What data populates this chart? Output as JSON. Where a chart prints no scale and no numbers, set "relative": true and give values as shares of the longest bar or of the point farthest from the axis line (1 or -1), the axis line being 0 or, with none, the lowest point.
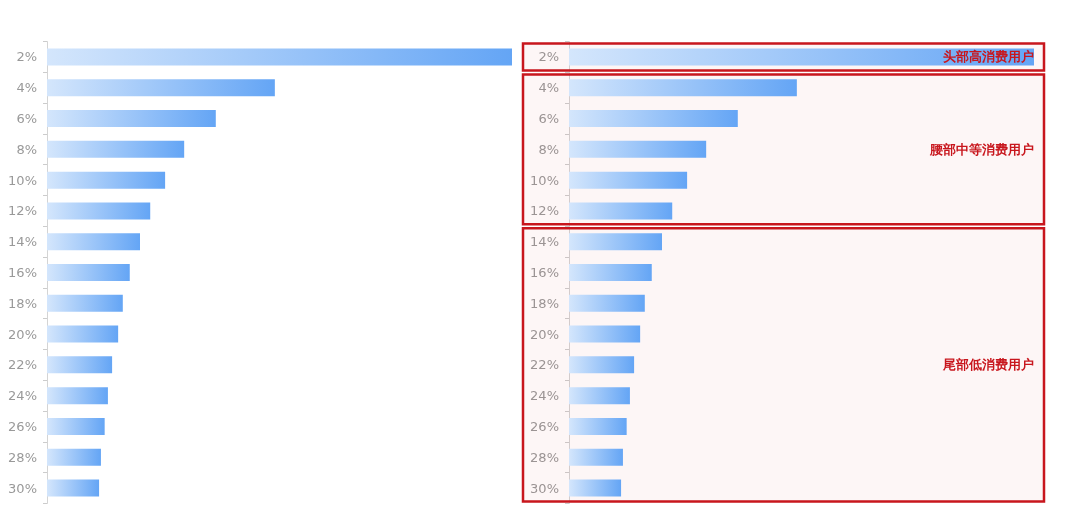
{
  "chart_data": [
    {
      "type": "bar",
      "orientation": "horizontal",
      "relative": true,
      "categories": [
        "2%",
        "4%",
        "6%",
        "8%",
        "10%",
        "12%",
        "14%",
        "16%",
        "18%",
        "20%",
        "22%",
        "24%",
        "26%",
        "28%",
        "30%"
      ],
      "values": [
        1,
        0.49,
        0.363,
        0.295,
        0.254,
        0.222,
        0.2,
        0.178,
        0.163,
        0.153,
        0.14,
        0.131,
        0.124,
        0.116,
        0.112
      ],
      "color": "#64a5f5"
    },
    {
      "type": "bar",
      "orientation": "horizontal",
      "relative": true,
      "categories": [
        "2%",
        "4%",
        "6%",
        "8%",
        "10%",
        "12%",
        "14%",
        "16%",
        "18%",
        "20%",
        "22%",
        "24%",
        "26%",
        "28%",
        "30%"
      ],
      "values": [
        1,
        0.49,
        0.363,
        0.295,
        0.254,
        0.222,
        0.2,
        0.178,
        0.163,
        0.153,
        0.14,
        0.131,
        0.124,
        0.116,
        0.112
      ],
      "color": "#64a5f5",
      "bands": [
        {
          "axis": "y",
          "from": "2%",
          "to": "2%",
          "label": "头部高消费用户",
          "color": "#c8161d"
        },
        {
          "axis": "y",
          "from": "4%",
          "to": "12%",
          "label": "腰部中等消费用户",
          "color": "#c8161d"
        },
        {
          "axis": "y",
          "from": "14%",
          "to": "30%",
          "label": "尾部低消费用户",
          "color": "#c8161d"
        }
      ]
    }
  ]
}
